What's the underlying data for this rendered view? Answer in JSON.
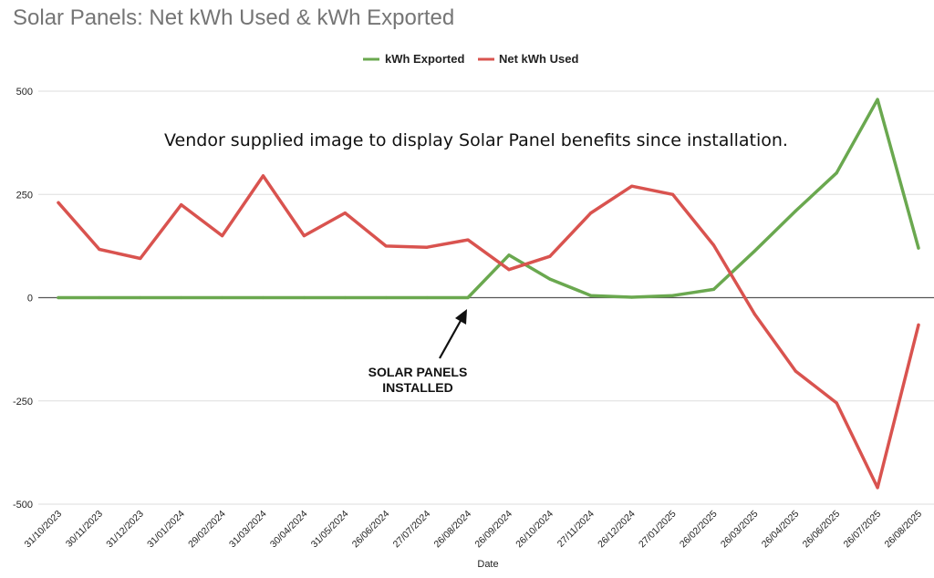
{
  "chart_data": {
    "type": "line",
    "title": "Solar Panels: Net kWh Used & kWh Exported",
    "xlabel": "Date",
    "ylabel": "",
    "ylim": [
      -500,
      500
    ],
    "yticks": [
      500,
      250,
      0,
      -250,
      -500
    ],
    "grid": true,
    "legend": "top-center",
    "categories": [
      "31/10/2023",
      "30/11/2023",
      "31/12/2023",
      "31/01/2024",
      "29/02/2024",
      "31/03/2024",
      "30/04/2024",
      "31/05/2024",
      "26/06/2024",
      "27/07/2024",
      "26/08/2024",
      "26/09/2024",
      "26/10/2024",
      "27/11/2024",
      "26/12/2024",
      "27/01/2025",
      "26/02/2025",
      "26/03/2025",
      "26/04/2025",
      "26/06/2025",
      "26/07/2025",
      "26/08/2025"
    ],
    "series": [
      {
        "name": "kWh Exported",
        "color": "#6aa84f",
        "values": [
          0,
          0,
          0,
          0,
          0,
          0,
          0,
          0,
          0,
          0,
          0,
          103,
          45,
          5,
          1,
          5,
          20,
          113,
          210,
          302,
          480,
          120
        ]
      },
      {
        "name": "Net kWh Used",
        "color": "#d9534f",
        "values": [
          230,
          117,
          95,
          225,
          150,
          295,
          150,
          205,
          125,
          122,
          140,
          68,
          100,
          205,
          270,
          250,
          127,
          -40,
          -178,
          -255,
          -460,
          -66
        ]
      }
    ],
    "annotations": [
      {
        "text_lines": [
          "SOLAR PANELS",
          "INSTALLED"
        ],
        "points_to": "26/08/2024"
      },
      {
        "text": "Vendor supplied image to display Solar Panel benefits since installation."
      }
    ]
  }
}
